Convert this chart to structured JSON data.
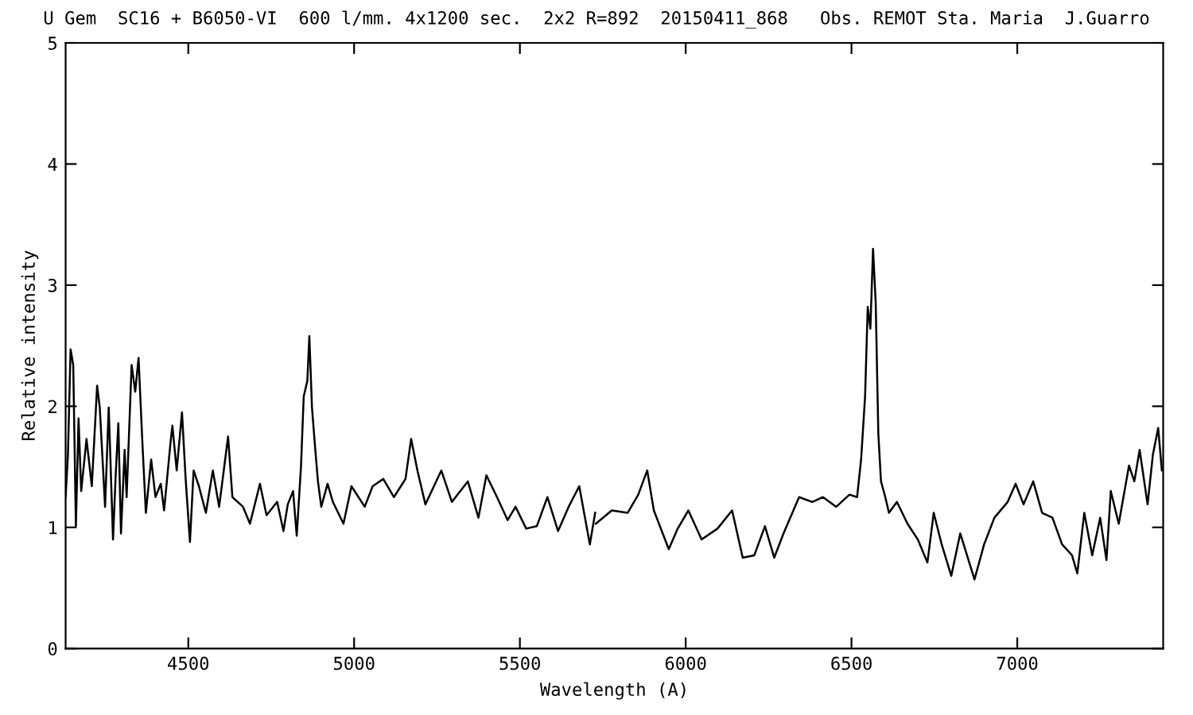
{
  "chart_data": {
    "type": "line",
    "title": "U Gem  SC16 + B6050-VI  600 l/mm. 4x1200 sec.  2x2 R=892  20150411_868   Obs. REMOT Sta. Maria  J.Guarro",
    "xlabel": "Wavelength (A)",
    "ylabel": "Relative intensity",
    "xlim": [
      4130,
      7440
    ],
    "ylim": [
      0,
      5
    ],
    "xticks": [
      4500,
      5000,
      5500,
      6000,
      6500,
      7000
    ],
    "yticks": [
      0,
      1,
      2,
      3,
      4,
      5
    ],
    "grid": false,
    "marker": "none",
    "line_style": "solid",
    "series": [
      {
        "color": "#000000",
        "x": [
          4130,
          4137,
          4145,
          4153,
          4161,
          4169,
          4177,
          4193,
          4209,
          4225,
          4233,
          4249,
          4260,
          4273,
          4281,
          4289,
          4297,
          4308,
          4314,
          4329,
          4340,
          4350,
          4361,
          4372,
          4388,
          4401,
          4417,
          4427,
          4446,
          4452,
          4465,
          4481,
          4492,
          4505,
          4516,
          4532,
          4553,
          4574,
          4593,
          4620,
          4633,
          4665,
          4686,
          4716,
          4736,
          4768,
          4787,
          4800,
          4816,
          4827,
          4840,
          4848,
          4859,
          4865,
          4873,
          4883,
          4891,
          4901,
          4920,
          4936,
          4968,
          4992,
          5032,
          5056,
          5088,
          5120,
          5155,
          5172,
          5191,
          5215,
          5263,
          5295,
          5343,
          5375,
          5399,
          5431,
          5463,
          5487,
          5519,
          5551,
          5583,
          5615,
          5647,
          5679,
          5711,
          5727
        ],
        "values": [
          1.25,
          1.6,
          2.47,
          2.34,
          1.01,
          1.9,
          1.3,
          1.73,
          1.34,
          2.17,
          1.99,
          1.17,
          1.99,
          0.9,
          1.43,
          1.86,
          0.95,
          1.64,
          1.25,
          2.34,
          2.12,
          2.4,
          1.73,
          1.12,
          1.56,
          1.25,
          1.36,
          1.14,
          1.69,
          1.84,
          1.47,
          1.95,
          1.4,
          0.88,
          1.47,
          1.34,
          1.12,
          1.47,
          1.17,
          1.75,
          1.25,
          1.17,
          1.03,
          1.36,
          1.1,
          1.21,
          0.97,
          1.19,
          1.3,
          0.93,
          1.51,
          2.08,
          2.21,
          2.58,
          1.99,
          1.64,
          1.38,
          1.17,
          1.36,
          1.21,
          1.03,
          1.34,
          1.17,
          1.34,
          1.4,
          1.25,
          1.4,
          1.73,
          1.47,
          1.19,
          1.47,
          1.21,
          1.38,
          1.08,
          1.43,
          1.25,
          1.06,
          1.17,
          0.99,
          1.01,
          1.25,
          0.97,
          1.17,
          1.34,
          0.86,
          1.12
        ]
      },
      {
        "color": "#000000",
        "x": [
          5729,
          5777,
          5825,
          5857,
          5884,
          5904,
          5949,
          5976,
          6008,
          6048,
          6096,
          6140,
          6172,
          6207,
          6239,
          6267,
          6295,
          6342,
          6382,
          6414,
          6454,
          6494,
          6517,
          6529,
          6541,
          6549,
          6557,
          6565,
          6573,
          6581,
          6589,
          6602,
          6613,
          6637,
          6669,
          6700,
          6729,
          6748,
          6772,
          6801,
          6828,
          6871,
          6900,
          6931,
          6971,
          6995,
          7019,
          7048,
          7075,
          7106,
          7135,
          7165,
          7181,
          7202,
          7226,
          7250,
          7269,
          7282,
          7306,
          7337,
          7353,
          7369,
          7393,
          7409,
          7425,
          7436
        ],
        "values": [
          1.03,
          1.14,
          1.12,
          1.27,
          1.47,
          1.14,
          0.82,
          0.99,
          1.14,
          0.9,
          0.99,
          1.14,
          0.75,
          0.77,
          1.01,
          0.75,
          0.95,
          1.25,
          1.21,
          1.25,
          1.17,
          1.27,
          1.25,
          1.56,
          2.08,
          2.82,
          2.64,
          3.3,
          2.86,
          1.77,
          1.38,
          1.25,
          1.12,
          1.21,
          1.03,
          0.9,
          0.71,
          1.12,
          0.86,
          0.6,
          0.95,
          0.57,
          0.86,
          1.08,
          1.21,
          1.36,
          1.19,
          1.38,
          1.12,
          1.08,
          0.86,
          0.77,
          0.62,
          1.12,
          0.77,
          1.08,
          0.73,
          1.3,
          1.03,
          1.51,
          1.38,
          1.64,
          1.19,
          1.6,
          1.82,
          1.47
        ]
      }
    ]
  }
}
